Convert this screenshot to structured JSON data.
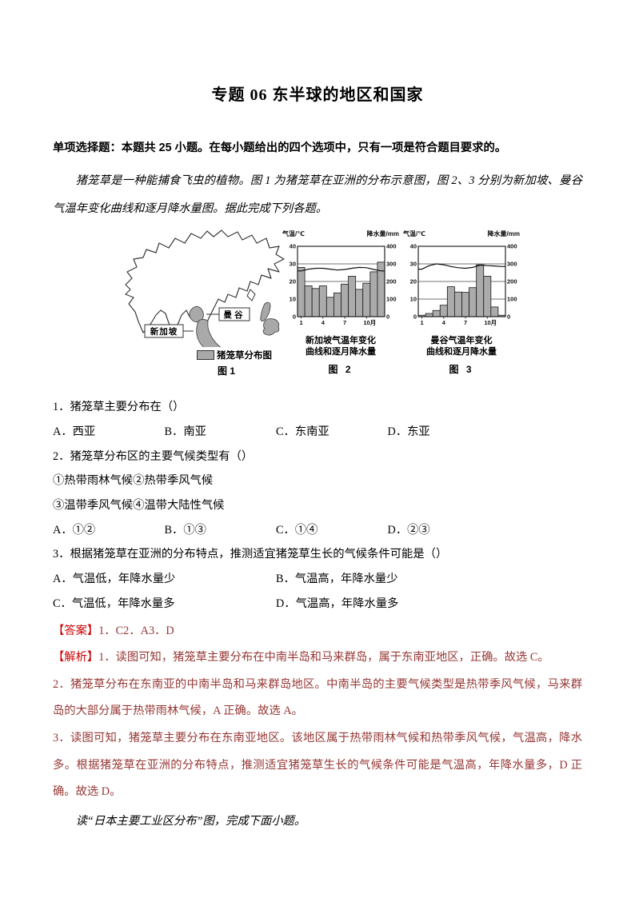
{
  "page_title": "专题 06 东半球的地区和国家",
  "instructions": "单项选择题：本题共 25 小题。在每小题给出的四个选项中，只有一项是符合题目要求的。",
  "intro_passage": "猪笼草是一种能捕食飞虫的植物。图 1 为猪笼草在亚洲的分布示意图，图 2、3 分别为新加坡、曼谷气温年变化曲线和逐月降水量图。据此完成下列各题。",
  "figure1": {
    "bangkok_label": "曼谷",
    "singapore_label": "新加坡",
    "legend_label": "猪笼草分布图",
    "caption": "图 1"
  },
  "chart_data": [
    {
      "type": "bar+line",
      "title": "新加坡气温年变化曲线和逐月降水量",
      "caption_line1": "新加坡气温年变化",
      "caption_line2": "曲线和逐月降水量",
      "figure_label": "图 2",
      "left_axis_label": "气温/℃",
      "right_axis_label": "降水量/mm",
      "left_ticks": [
        0,
        10,
        20,
        30,
        40
      ],
      "right_ticks": [
        0,
        100,
        200,
        300,
        400
      ],
      "x_axis_ticks": [
        "1",
        "4",
        "7",
        "10月"
      ],
      "months": [
        1,
        2,
        3,
        4,
        5,
        6,
        7,
        8,
        9,
        10,
        11,
        12
      ],
      "precipitation_mm": [
        280,
        175,
        160,
        175,
        110,
        135,
        185,
        230,
        155,
        190,
        255,
        310
      ],
      "temperature_c": [
        26,
        27,
        27.5,
        27.5,
        27,
        26.5,
        26.8,
        27.5,
        28,
        27.8,
        26.8,
        26
      ],
      "left_axis_range": [
        0,
        40
      ],
      "right_axis_range": [
        0,
        400
      ],
      "grid": true
    },
    {
      "type": "bar+line",
      "title": "曼谷气温年变化曲线和逐月降水量",
      "caption_line1": "曼谷气温年变化",
      "caption_line2": "曲线和逐月降水量",
      "figure_label": "图 3",
      "left_axis_label": "气温/℃",
      "right_axis_label": "降水量/mm",
      "left_ticks": [
        0,
        10,
        20,
        30,
        40
      ],
      "right_ticks": [
        0,
        100,
        200,
        300,
        400
      ],
      "x_axis_ticks": [
        "1",
        "4",
        "7",
        "10月"
      ],
      "months": [
        1,
        2,
        3,
        4,
        5,
        6,
        7,
        8,
        9,
        10,
        11,
        12
      ],
      "precipitation_mm": [
        8,
        18,
        35,
        65,
        170,
        140,
        138,
        165,
        295,
        230,
        55,
        8
      ],
      "temperature_c": [
        27,
        29,
        30,
        29.5,
        28.5,
        27.8,
        27.5,
        28,
        29.3,
        29,
        28.8,
        28.5
      ],
      "left_axis_range": [
        0,
        40
      ],
      "right_axis_range": [
        0,
        400
      ],
      "grid": true
    }
  ],
  "questions": [
    {
      "text": "1．猪笼草主要分布在（）",
      "options": [
        "A．西亚",
        "B．南亚",
        "C．东南亚",
        "D．东亚"
      ]
    },
    {
      "text": "2．猪笼草分布区的主要气候类型有（）",
      "items": [
        "①热带雨林气候②热带季风气候",
        "③温带季风气候④温带大陆性气候"
      ],
      "options": [
        "A．①②",
        "B．①③",
        "C．①④",
        "D．②③"
      ]
    },
    {
      "text": "3．根据猪笼草在亚洲的分布特点，推测适宜猪笼草生长的气候条件可能是（）",
      "options": [
        "A．气温低，年降水量少",
        "B．气温高，年降水量少",
        "C．气温低，年降水量多",
        "D．气温高，年降水量多"
      ]
    }
  ],
  "answer_section": {
    "label": "【答案】",
    "text": "1．C2．A3．D"
  },
  "analysis_section": {
    "label": "【解析】",
    "item1": "1．读图可知，猪笼草主要分布在中南半岛和马来群岛，属于东南亚地区，正确。故选 C。",
    "item2": "2．猪笼草分布在东南亚的中南半岛和马来群岛地区。中南半岛的主要气候类型是热带季风气候，马来群岛的大部分属于热带雨林气候，A 正确。故选 A。",
    "item3": "3．读图可知，猪笼草主要分布在东南亚地区。该地区属于热带雨林气候和热带季风气候，气温高，降水多。根据猪笼草在亚洲的分布特点，推测适宜猪笼草生长的气候条件可能是气温高，年降水量多，D 正确。故选 D。"
  },
  "closing_passage": "读“日本主要工业区分布”图，完成下面小题。",
  "colors": {
    "section_label_red": "#cc0000",
    "analysis_text_red": "#953734",
    "bar_fill_gray": "#ababab",
    "map_shade_gray": "#a9a9a9"
  }
}
